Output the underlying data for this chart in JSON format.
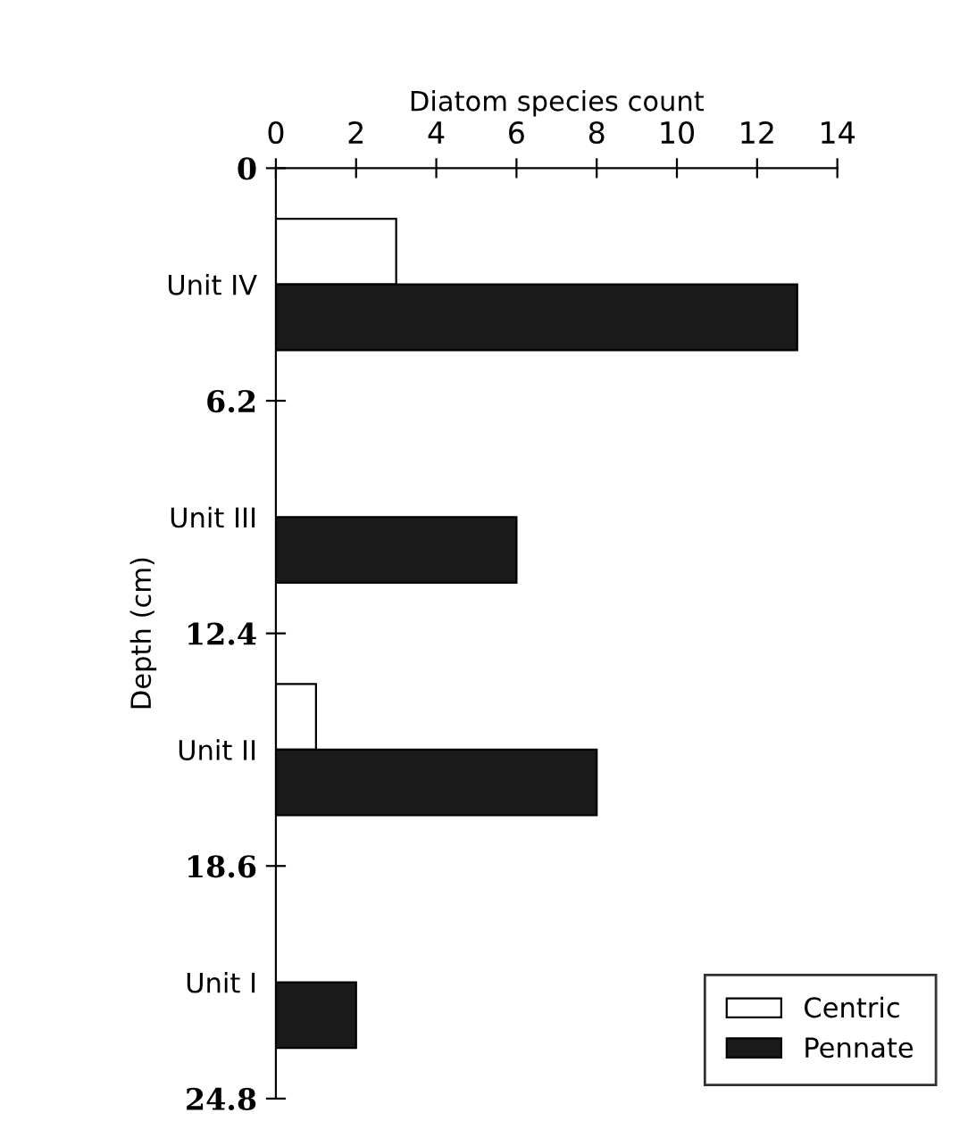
{
  "chart_data": {
    "type": "bar",
    "orientation": "horizontal",
    "xlabel": "Diatom species count",
    "ylabel": "Depth (cm)",
    "x": [
      3.1,
      9.3,
      15.5,
      21.7
    ],
    "series": [
      {
        "name": "Centric",
        "color": "#ffffff",
        "values": [
          3,
          null,
          1,
          null
        ]
      },
      {
        "name": "Pennate",
        "color": "#1a1a1a",
        "values": [
          13,
          6,
          8,
          2
        ]
      }
    ],
    "xlim": [
      0,
      14
    ],
    "xticks": [
      0,
      2,
      4,
      6,
      8,
      10,
      12,
      14
    ],
    "ylim": [
      24.8,
      0
    ],
    "yticks": [
      0,
      {
        "value": 3.1,
        "label": "Unit IV"
      },
      6.2,
      {
        "value": 9.3,
        "label": "Unit III"
      },
      12.4,
      {
        "value": 15.5,
        "label": "Unit II"
      },
      18.6,
      {
        "value": 21.7,
        "label": "Unit I"
      },
      24.8
    ],
    "legend": "bottom right",
    "grid": false
  }
}
